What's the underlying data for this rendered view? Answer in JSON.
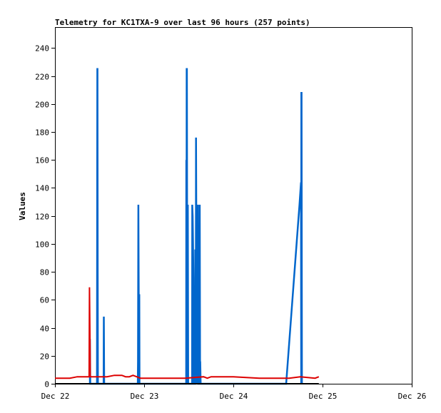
{
  "chart_data": {
    "type": "line",
    "title": "Telemetry for KC1TXA-9 over last 96 hours (257 points)",
    "xlabel": "",
    "ylabel": "Values",
    "x_ticks": [
      "Dec 22",
      "Dec 23",
      "Dec 24",
      "Dec 25",
      "Dec 26"
    ],
    "xlim_hours": [
      0,
      96
    ],
    "ylim": [
      0,
      255
    ],
    "y_ticks": [
      0,
      20,
      40,
      60,
      80,
      100,
      120,
      140,
      160,
      180,
      200,
      220,
      240
    ],
    "grid": false,
    "legend": "none",
    "series": [
      {
        "color": "#0066cc",
        "points": [
          [
            9.4,
            0
          ],
          [
            9.4,
            32
          ],
          [
            9.5,
            0
          ],
          [
            11.3,
            0
          ],
          [
            11.35,
            88
          ],
          [
            11.4,
            225
          ],
          [
            11.45,
            225
          ],
          [
            11.5,
            80
          ],
          [
            11.55,
            0
          ],
          [
            13.1,
            0
          ],
          [
            13.15,
            48
          ],
          [
            13.25,
            0
          ],
          [
            22.3,
            0
          ],
          [
            22.35,
            16
          ],
          [
            22.45,
            128
          ],
          [
            22.55,
            64
          ],
          [
            22.65,
            0
          ],
          [
            22.7,
            64
          ],
          [
            22.75,
            0
          ],
          [
            35.3,
            0
          ],
          [
            35.35,
            160
          ],
          [
            35.4,
            32
          ],
          [
            35.45,
            225
          ],
          [
            35.5,
            225
          ],
          [
            35.55,
            112
          ],
          [
            35.6,
            112
          ],
          [
            35.65,
            0
          ],
          [
            35.7,
            32
          ],
          [
            35.75,
            128
          ],
          [
            35.85,
            0
          ],
          [
            36.9,
            0
          ],
          [
            36.95,
            128
          ],
          [
            37.05,
            120
          ],
          [
            37.15,
            100
          ],
          [
            37.25,
            76
          ],
          [
            37.35,
            0
          ],
          [
            37.7,
            0
          ],
          [
            37.75,
            96
          ],
          [
            37.85,
            88
          ],
          [
            37.9,
            0
          ],
          [
            37.95,
            176
          ],
          [
            38.05,
            104
          ],
          [
            38.15,
            0
          ],
          [
            38.2,
            128
          ],
          [
            38.3,
            112
          ],
          [
            38.4,
            0
          ],
          [
            38.45,
            128
          ],
          [
            38.55,
            0
          ],
          [
            38.9,
            0
          ],
          [
            38.95,
            128
          ],
          [
            39.05,
            0
          ],
          [
            39.1,
            16
          ],
          [
            39.2,
            0
          ],
          [
            62.2,
            0
          ],
          [
            65.8,
            128
          ],
          [
            66.2,
            144
          ],
          [
            66.25,
            0
          ],
          [
            66.3,
            208
          ],
          [
            66.35,
            208
          ],
          [
            66.45,
            0
          ]
        ]
      },
      {
        "color": "#dd0000",
        "points": [
          [
            0,
            4
          ],
          [
            4,
            4
          ],
          [
            6,
            5
          ],
          [
            9.2,
            5
          ],
          [
            9.3,
            69
          ],
          [
            9.4,
            36
          ],
          [
            9.5,
            5
          ],
          [
            12,
            5
          ],
          [
            14,
            5
          ],
          [
            16,
            6
          ],
          [
            18,
            6
          ],
          [
            19,
            5
          ],
          [
            20,
            5
          ],
          [
            21,
            6
          ],
          [
            22,
            5
          ],
          [
            23,
            4
          ],
          [
            30,
            4
          ],
          [
            35,
            4
          ],
          [
            40,
            5
          ],
          [
            41,
            4
          ],
          [
            42,
            5
          ],
          [
            44,
            5
          ],
          [
            48,
            5
          ],
          [
            55,
            4
          ],
          [
            60,
            4
          ],
          [
            63,
            4
          ],
          [
            66,
            5
          ],
          [
            70,
            4
          ],
          [
            71,
            5
          ]
        ]
      },
      {
        "color": "#000000",
        "points": [
          [
            0,
            0
          ],
          [
            71,
            0
          ]
        ]
      }
    ]
  }
}
